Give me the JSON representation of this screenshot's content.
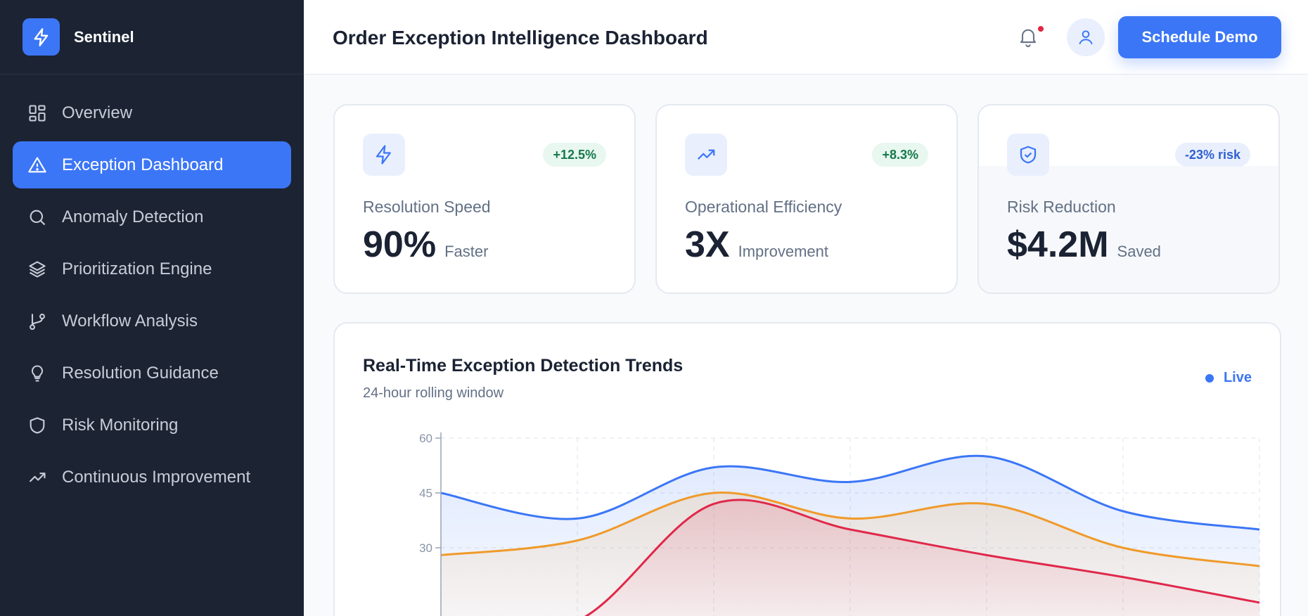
{
  "brand": {
    "name": "Sentinel",
    "logo_icon": "bolt-icon"
  },
  "sidebar": {
    "items": [
      {
        "label": "Overview",
        "icon": "grid-icon",
        "active": false
      },
      {
        "label": "Exception Dashboard",
        "icon": "alert-triangle-icon",
        "active": true
      },
      {
        "label": "Anomaly Detection",
        "icon": "search-icon",
        "active": false
      },
      {
        "label": "Prioritization Engine",
        "icon": "layers-icon",
        "active": false
      },
      {
        "label": "Workflow Analysis",
        "icon": "git-branch-icon",
        "active": false
      },
      {
        "label": "Resolution Guidance",
        "icon": "lightbulb-icon",
        "active": false
      },
      {
        "label": "Risk Monitoring",
        "icon": "shield-icon",
        "active": false
      },
      {
        "label": "Continuous Improvement",
        "icon": "trending-up-icon",
        "active": false
      }
    ]
  },
  "header": {
    "title": "Order Exception Intelligence Dashboard",
    "demo_button": "Schedule Demo",
    "has_notification": true
  },
  "stats": [
    {
      "label": "Resolution Speed",
      "value": "90%",
      "unit": "Faster",
      "badge": "+12.5%",
      "badge_tone": "green",
      "icon": "bolt-icon"
    },
    {
      "label": "Operational Efficiency",
      "value": "3X",
      "unit": "Improvement",
      "badge": "+8.3%",
      "badge_tone": "green",
      "icon": "trending-up-icon"
    },
    {
      "label": "Risk Reduction",
      "value": "$4.2M",
      "unit": "Saved",
      "badge": "-23% risk",
      "badge_tone": "blue",
      "icon": "shield-check-icon"
    }
  ],
  "chart": {
    "title": "Real-Time Exception Detection Trends",
    "subtitle": "24-hour rolling window",
    "live_label": "Live"
  },
  "chart_data": {
    "type": "area",
    "title": "Real-Time Exception Detection Trends",
    "subtitle": "24-hour rolling window",
    "y_ticks": [
      60,
      45,
      30
    ],
    "ylim": [
      0,
      60
    ],
    "x": [
      0,
      1,
      2,
      3,
      4,
      5,
      6
    ],
    "grid": true,
    "series": [
      {
        "color": "#3b76f6",
        "values": [
          45,
          38,
          52,
          48,
          55,
          40,
          35
        ]
      },
      {
        "color": "#f09a2a",
        "values": [
          28,
          32,
          45,
          38,
          42,
          30,
          25
        ]
      },
      {
        "color": "#e0284a",
        "values": [
          8,
          10,
          42,
          35,
          28,
          22,
          15
        ]
      }
    ]
  },
  "colors": {
    "accent": "#3b76f6",
    "sidebar_bg": "#1c2333",
    "danger": "#e0284a",
    "warning": "#f09a2a"
  }
}
